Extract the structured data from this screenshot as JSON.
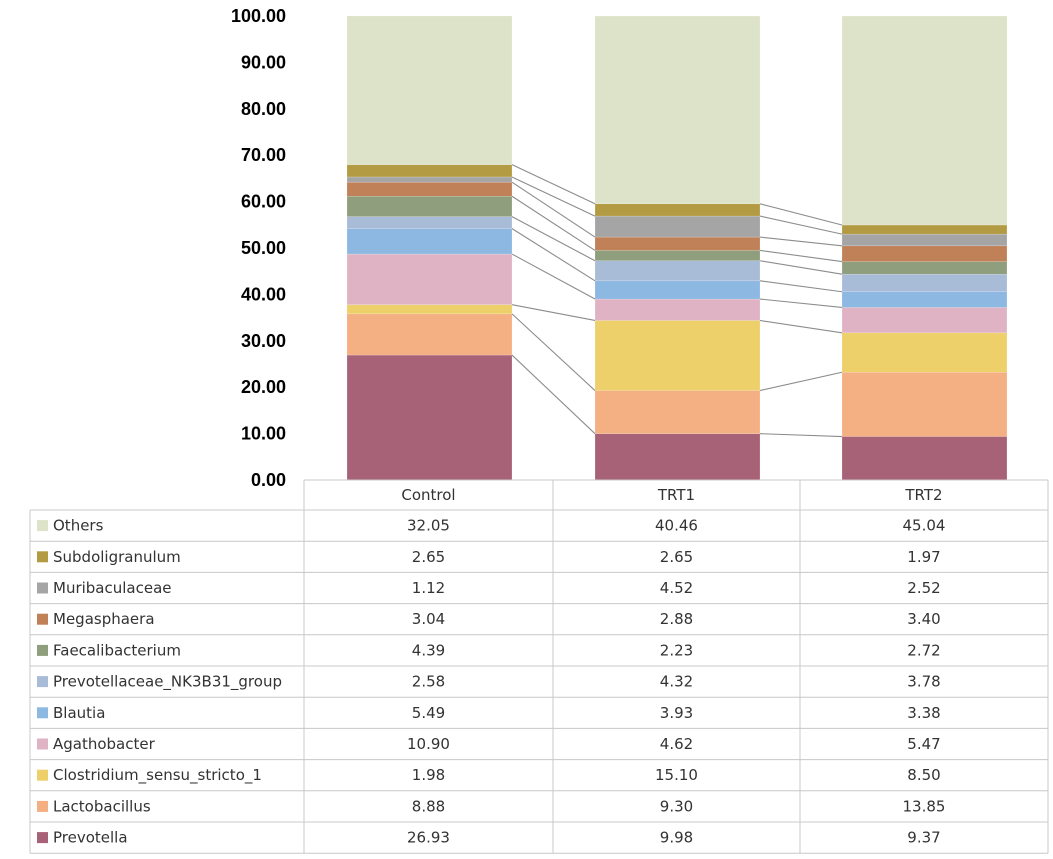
{
  "chart_data": {
    "type": "bar",
    "stacked": true,
    "title": "",
    "xlabel": "",
    "ylabel": "",
    "ylim": [
      0,
      100
    ],
    "y_ticks": [
      "0.00",
      "10.00",
      "20.00",
      "30.00",
      "40.00",
      "50.00",
      "60.00",
      "70.00",
      "80.00",
      "90.00",
      "100.00"
    ],
    "grid": false,
    "legend": "data-table-below",
    "categories": [
      "Control",
      "TRT1",
      "TRT2"
    ],
    "series": [
      {
        "name": "Prevotella",
        "color": "#A86278",
        "values": [
          26.93,
          9.98,
          9.37
        ],
        "labels": [
          "26.93",
          "9.98",
          "9.37"
        ]
      },
      {
        "name": "Lactobacillus",
        "color": "#F4AF83",
        "values": [
          8.88,
          9.3,
          13.85
        ],
        "labels": [
          "8.88",
          "9.30",
          "13.85"
        ]
      },
      {
        "name": "Clostridium_sensu_stricto_1",
        "color": "#EDD06A",
        "values": [
          1.98,
          15.1,
          8.5
        ],
        "labels": [
          "1.98",
          "15.10",
          "8.50"
        ]
      },
      {
        "name": "Agathobacter",
        "color": "#DFB3C3",
        "values": [
          10.9,
          4.62,
          5.47
        ],
        "labels": [
          "10.90",
          "4.62",
          "5.47"
        ]
      },
      {
        "name": "Blautia",
        "color": "#8DB8E2",
        "values": [
          5.49,
          3.93,
          3.38
        ],
        "labels": [
          "5.49",
          "3.93",
          "3.38"
        ]
      },
      {
        "name": "Prevotellaceae_NK3B31_group",
        "color": "#A8BCD8",
        "values": [
          2.58,
          4.32,
          3.78
        ],
        "labels": [
          "2.58",
          "4.32",
          "3.78"
        ]
      },
      {
        "name": "Faecalibacterium",
        "color": "#8F9F7D",
        "values": [
          4.39,
          2.23,
          2.72
        ],
        "labels": [
          "4.39",
          "2.23",
          "2.72"
        ]
      },
      {
        "name": "Megasphaera",
        "color": "#C08058",
        "values": [
          3.04,
          2.88,
          3.4
        ],
        "labels": [
          "3.04",
          "2.88",
          "3.40"
        ]
      },
      {
        "name": "Muribaculaceae",
        "color": "#A5A5A5",
        "values": [
          1.12,
          4.52,
          2.52
        ],
        "labels": [
          "1.12",
          "4.52",
          "2.52"
        ]
      },
      {
        "name": "Subdoligranulum",
        "color": "#B39B44",
        "values": [
          2.65,
          2.65,
          1.97
        ],
        "labels": [
          "2.65",
          "2.65",
          "1.97"
        ]
      },
      {
        "name": "Others",
        "color": "#DDE3C8",
        "values": [
          32.05,
          40.46,
          45.04
        ],
        "labels": [
          "32.05",
          "40.46",
          "45.04"
        ]
      }
    ]
  }
}
